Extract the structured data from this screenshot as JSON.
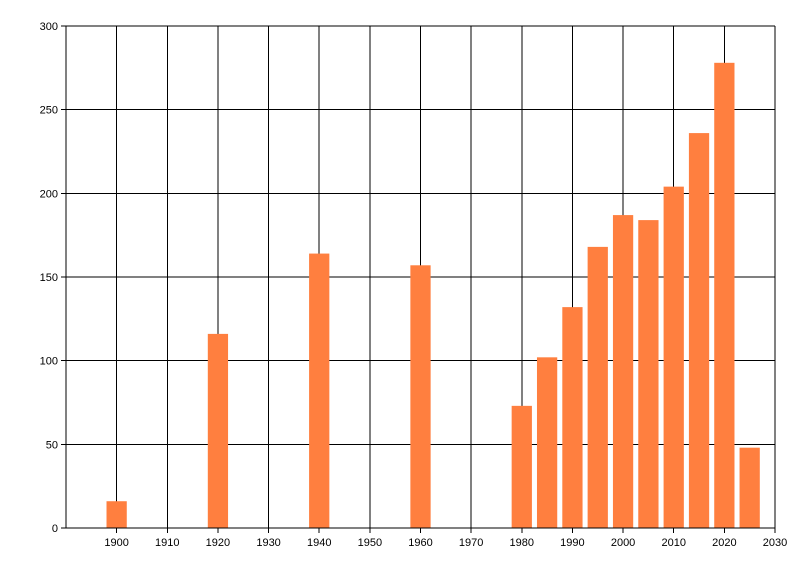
{
  "chart_data": {
    "type": "bar",
    "title": "",
    "xlabel": "",
    "ylabel": "",
    "xlim": [
      1890,
      2030
    ],
    "ylim": [
      0,
      300
    ],
    "x_ticks": [
      "1900",
      "1910",
      "1920",
      "1930",
      "1940",
      "1950",
      "1960",
      "1970",
      "1980",
      "1990",
      "2000",
      "2010",
      "2020",
      "2030"
    ],
    "y_ticks": [
      "0",
      "50",
      "100",
      "150",
      "200",
      "250",
      "300"
    ],
    "grid": true,
    "legend": "none",
    "series": [
      {
        "color": "#ff7f3f",
        "x": [
          1900,
          1920,
          1940,
          1960,
          1980,
          1985,
          1990,
          1995,
          2000,
          2005,
          2010,
          2015,
          2020,
          2025
        ],
        "values": [
          16,
          116,
          164,
          157,
          73,
          102,
          132,
          168,
          187,
          184,
          204,
          236,
          278,
          48
        ]
      }
    ]
  }
}
